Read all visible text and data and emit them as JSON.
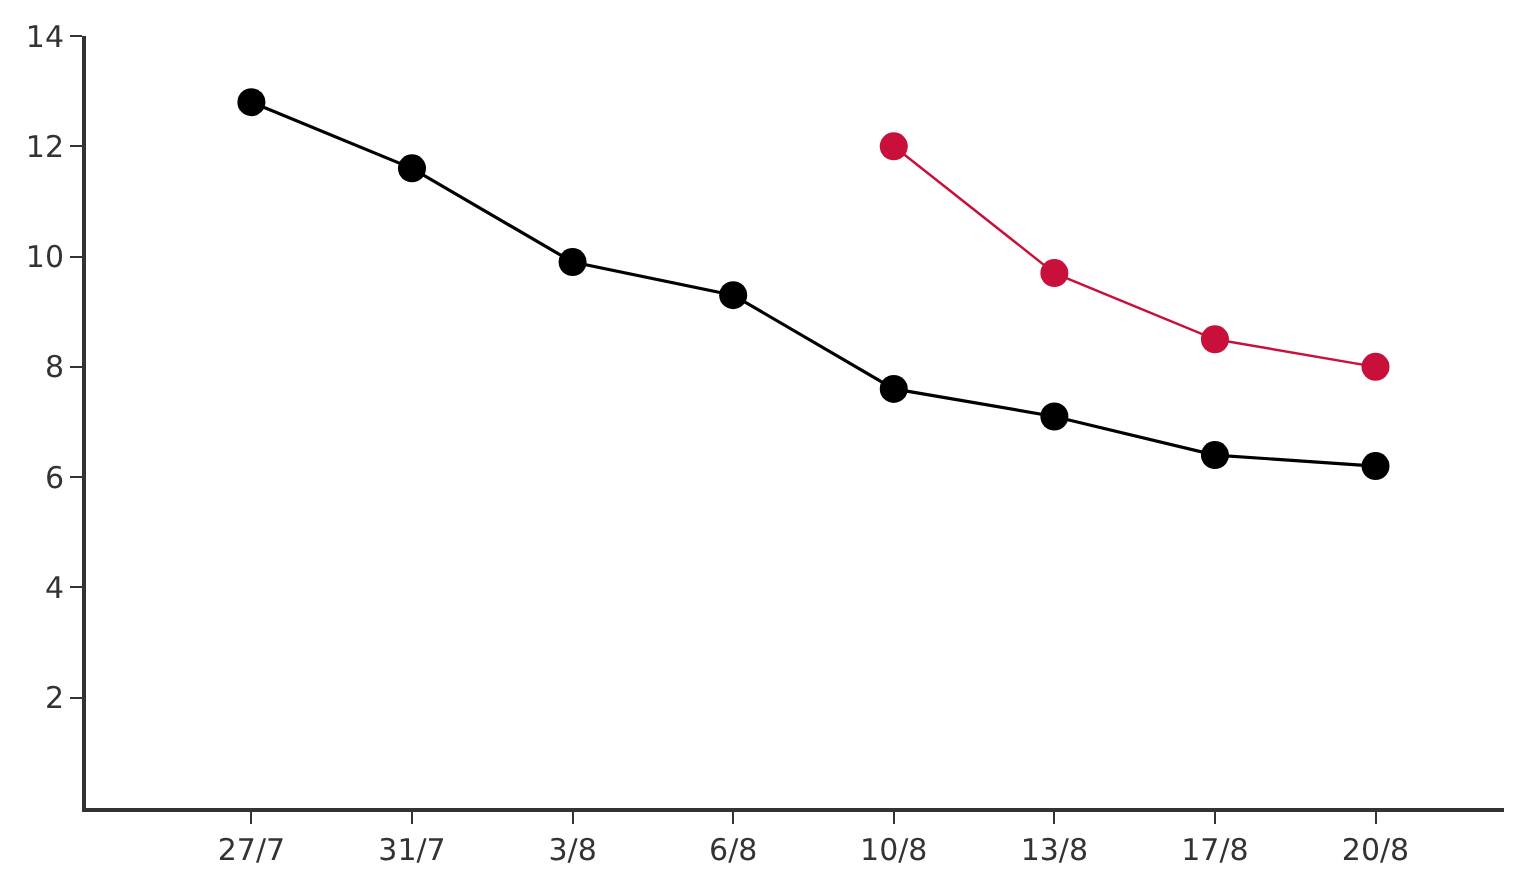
{
  "chart_data": {
    "type": "line",
    "categories": [
      "27/7",
      "31/7",
      "3/8",
      "6/8",
      "10/8",
      "13/8",
      "17/8",
      "20/8"
    ],
    "series": [
      {
        "color": "#000000",
        "values": [
          12.8,
          11.6,
          9.9,
          9.3,
          7.6,
          7.1,
          6.4,
          6.2
        ]
      },
      {
        "color": "#c8103a",
        "values": [
          null,
          null,
          null,
          null,
          12.0,
          9.7,
          8.5,
          8.0
        ]
      }
    ],
    "ylim": [
      0,
      14
    ],
    "yticks": [
      2,
      4,
      6,
      8,
      10,
      12,
      14
    ],
    "marker": "circle",
    "line_style": "solid"
  }
}
